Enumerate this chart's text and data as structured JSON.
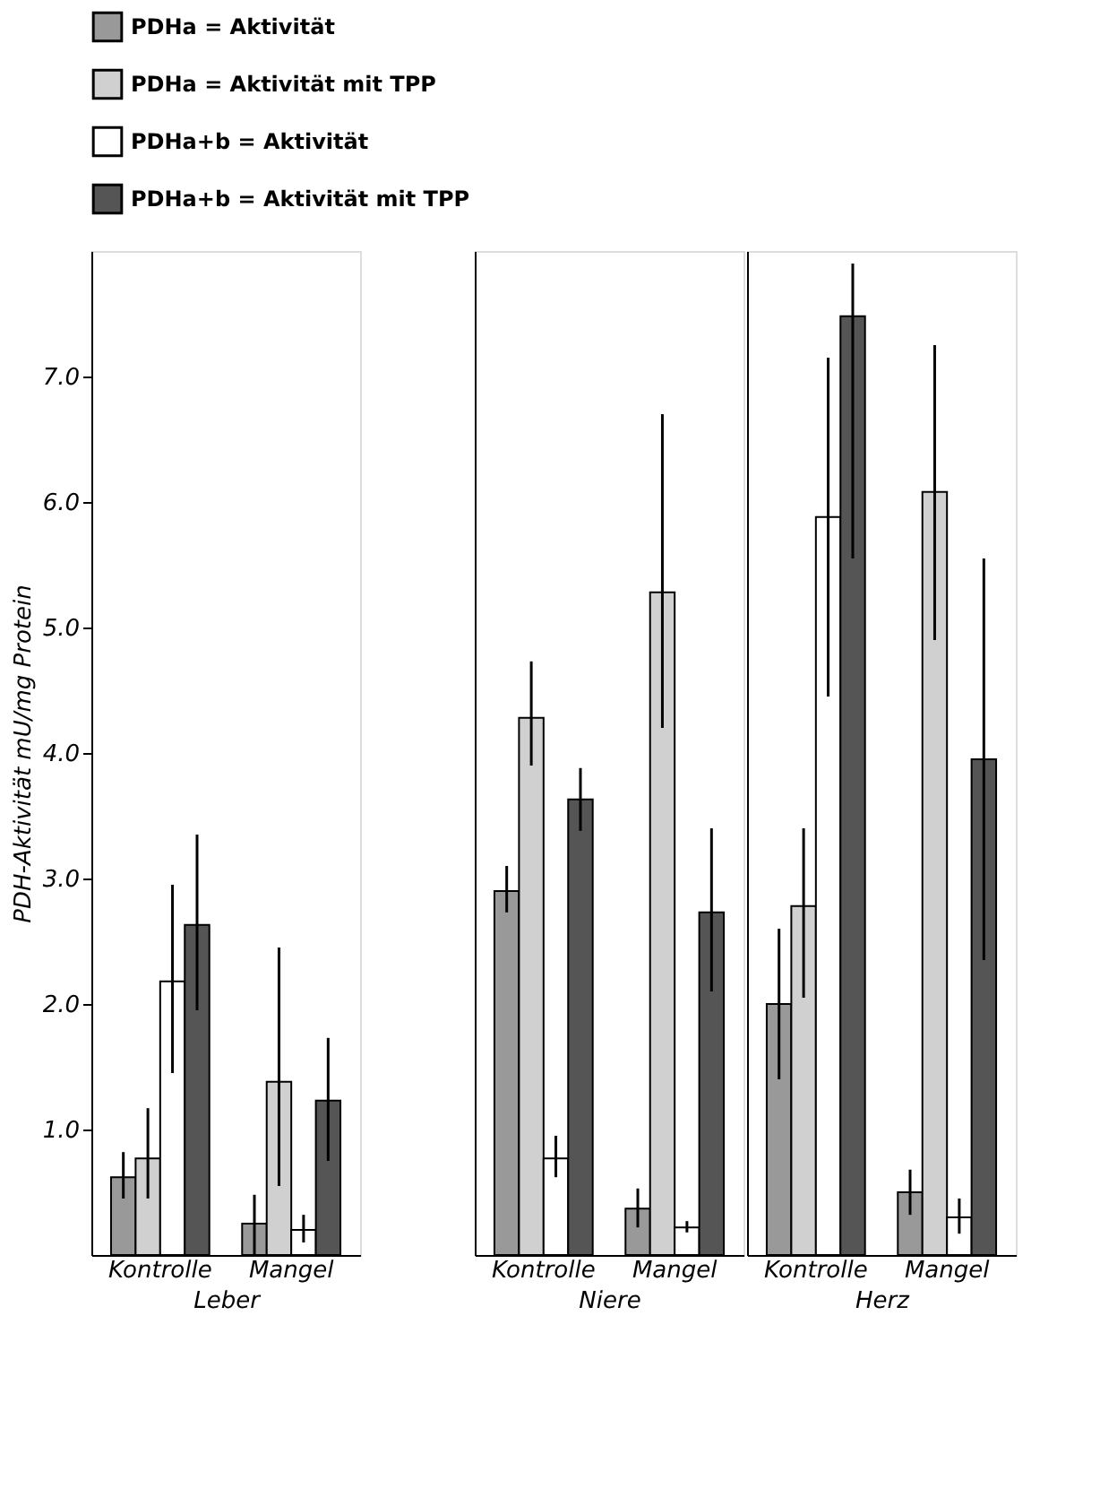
{
  "chart_data": [
    {
      "type": "bar",
      "categories": [
        "Kontrolle",
        "Mangel"
      ],
      "xlabel": "Leber",
      "ylabel": "PDH-Aktivität mU/mg Protein",
      "ylim": [
        0,
        8.0
      ],
      "yticks": [
        {
          "value": 1.0,
          "label": "1.0"
        },
        {
          "value": 2.0,
          "label": "2.0"
        },
        {
          "value": 3.0,
          "label": "3.0"
        },
        {
          "value": 4.0,
          "label": "4.0"
        },
        {
          "value": 5.0,
          "label": "5.0"
        },
        {
          "value": 6.0,
          "label": "6.0"
        },
        {
          "value": 7.0,
          "label": "7.0"
        }
      ],
      "grid": false,
      "legend": "top",
      "series": [
        {
          "name": "PDHa = Aktivität",
          "color": "#999999",
          "values": [
            0.62,
            0.25
          ],
          "errors": [
            [
              0.45,
              0.82
            ],
            [
              0.0,
              0.48
            ]
          ]
        },
        {
          "name": "PDHa = Aktivität mit TPP",
          "color": "#d0d0d0",
          "values": [
            0.77,
            1.38
          ],
          "errors": [
            [
              0.45,
              1.17
            ],
            [
              0.55,
              2.45
            ]
          ]
        },
        {
          "name": "PDHa+b = Aktivität",
          "color": "#ffffff",
          "values": [
            2.18,
            0.2
          ],
          "errors": [
            [
              1.45,
              2.95
            ],
            [
              0.1,
              0.32
            ]
          ]
        },
        {
          "name": "PDHa+b = Aktivität mit TPP",
          "color": "#555555",
          "values": [
            2.63,
            1.23
          ],
          "errors": [
            [
              1.95,
              3.35
            ],
            [
              0.75,
              1.73
            ]
          ]
        }
      ]
    },
    {
      "type": "bar",
      "categories": [
        "Kontrolle",
        "Mangel"
      ],
      "xlabel": "Niere",
      "ylim": [
        0,
        8.0
      ],
      "tick_labels": "x",
      "grid": false,
      "series": [
        {
          "color": "#999999",
          "values": [
            2.9,
            0.37
          ],
          "errors": [
            [
              2.73,
              3.1
            ],
            [
              0.22,
              0.53
            ]
          ]
        },
        {
          "color": "#d0d0d0",
          "values": [
            4.28,
            5.28
          ],
          "errors": [
            [
              3.9,
              4.73
            ],
            [
              4.2,
              6.7
            ]
          ]
        },
        {
          "color": "#ffffff",
          "values": [
            0.77,
            0.22
          ],
          "errors": [
            [
              0.62,
              0.95
            ],
            [
              0.18,
              0.27
            ]
          ]
        },
        {
          "color": "#555555",
          "values": [
            3.63,
            2.73
          ],
          "errors": [
            [
              3.38,
              3.88
            ],
            [
              2.1,
              3.4
            ]
          ]
        }
      ]
    },
    {
      "type": "bar",
      "categories": [
        "Kontrolle",
        "Mangel"
      ],
      "xlabel": "Herz",
      "ylim": [
        0,
        8.0
      ],
      "tick_labels": "x",
      "grid": false,
      "series": [
        {
          "color": "#999999",
          "values": [
            2.0,
            0.5
          ],
          "errors": [
            [
              1.4,
              2.6
            ],
            [
              0.32,
              0.68
            ]
          ]
        },
        {
          "color": "#d0d0d0",
          "values": [
            2.78,
            6.08
          ],
          "errors": [
            [
              2.05,
              3.4
            ],
            [
              4.9,
              7.25
            ]
          ]
        },
        {
          "color": "#ffffff",
          "values": [
            5.88,
            0.3
          ],
          "errors": [
            [
              4.45,
              7.15
            ],
            [
              0.17,
              0.45
            ]
          ]
        },
        {
          "color": "#555555",
          "values": [
            7.48,
            3.95
          ],
          "errors": [
            [
              5.55,
              7.9
            ],
            [
              2.35,
              5.55
            ]
          ]
        }
      ]
    }
  ]
}
